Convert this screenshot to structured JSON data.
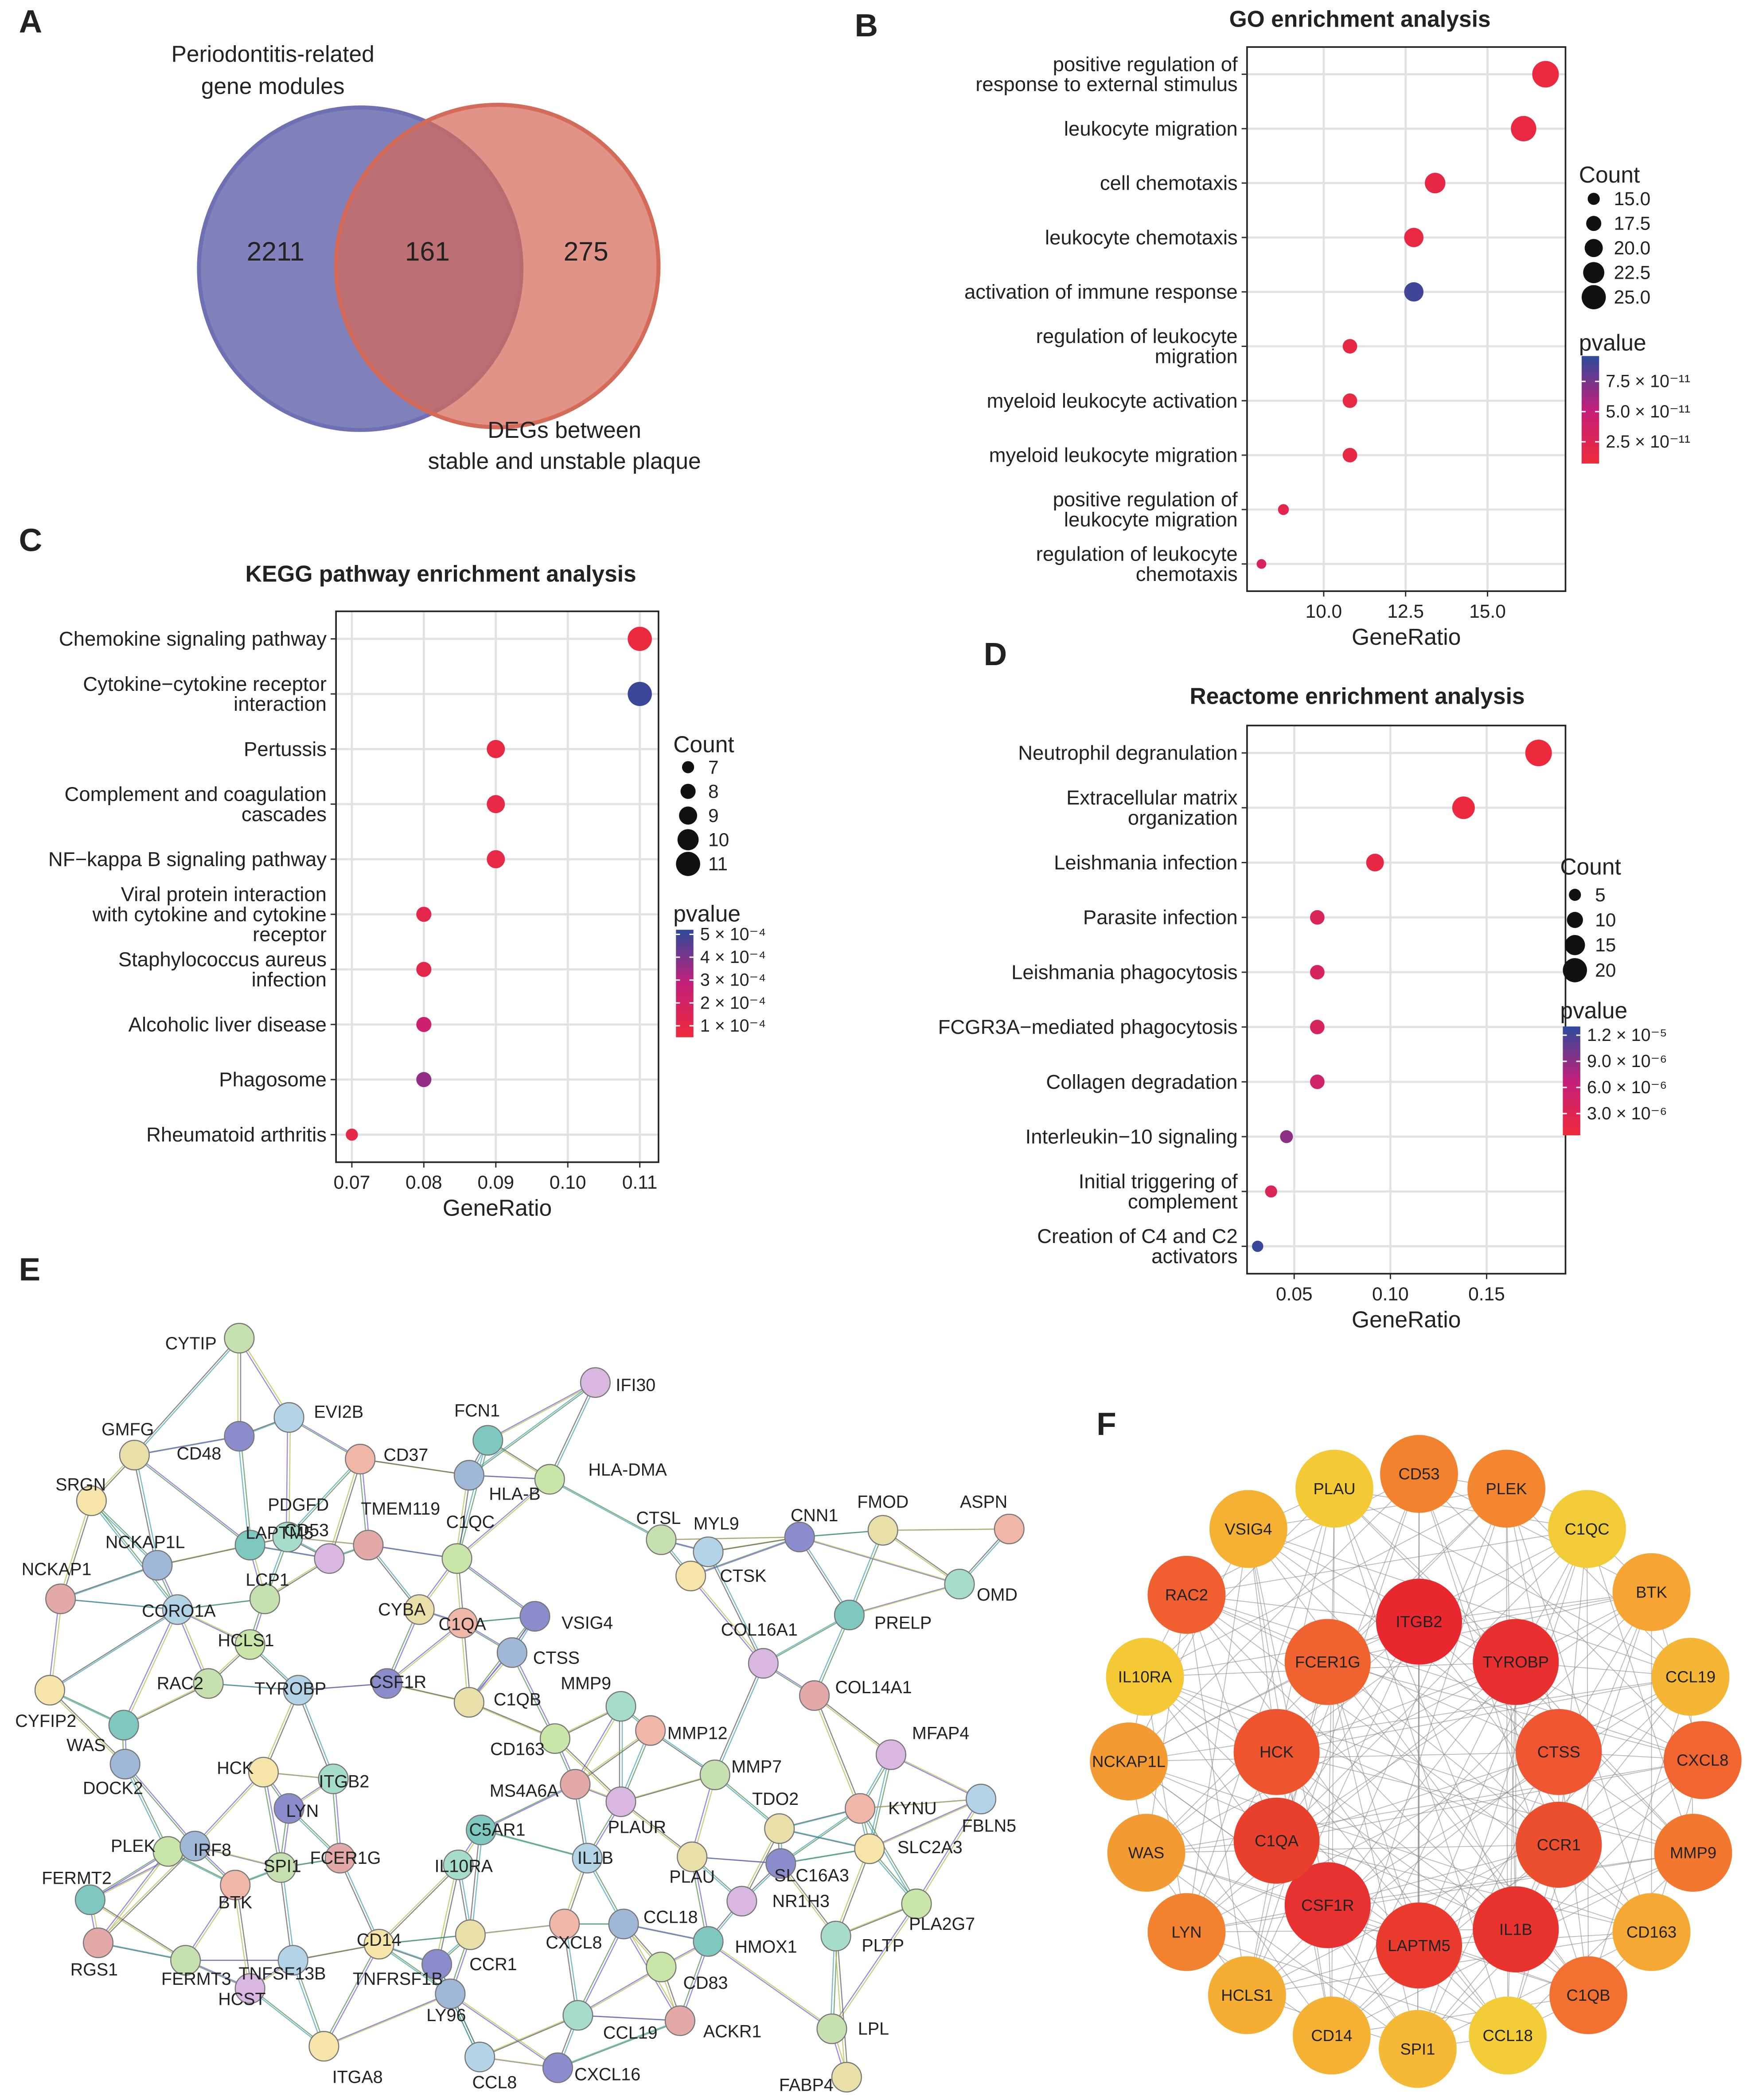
{
  "chart_data": [
    {
      "panel": "A",
      "type": "venn",
      "sets": [
        {
          "name": [
            "Periodontitis-related",
            "gene modules"
          ],
          "color": "#6f70b3",
          "only": 2211
        },
        {
          "name": [
            "DEGs between",
            "stable and unstable plaque"
          ],
          "color": "#d46a58",
          "only": 275
        }
      ],
      "intersection": 161
    },
    {
      "panel": "B",
      "type": "dot",
      "title": "GO enrichment analysis",
      "xlabel": "GeneRatio",
      "categories": [
        [
          "positive regulation of",
          "response to external stimulus"
        ],
        "leukocyte migration",
        "cell chemotaxis",
        "leukocyte chemotaxis",
        "activation of immune response",
        [
          "regulation of leukocyte",
          "migration"
        ],
        "myeloid leukocyte activation",
        "myeloid leukocyte migration",
        [
          "positive regulation of",
          "leukocyte migration"
        ],
        [
          "regulation of leukocyte",
          "chemotaxis"
        ]
      ],
      "values": [
        16.77,
        16.1,
        13.4,
        12.75,
        12.75,
        10.8,
        10.8,
        10.8,
        8.77,
        8.1
      ],
      "count": [
        27,
        26,
        22,
        21,
        21,
        17,
        17,
        17,
        14,
        13
      ],
      "pvalue": [
        1e-11,
        1.2e-11,
        1.5e-11,
        1.3e-11,
        9e-11,
        1.4e-11,
        1.3e-11,
        1.4e-11,
        2e-11,
        3e-11
      ],
      "xlim": [
        7.66,
        17.38
      ],
      "xticks": [
        {
          "value": 10,
          "label": "10.0"
        },
        12.5,
        {
          "value": 15,
          "label": "15.0"
        }
      ],
      "grid": true,
      "size_title": "Count",
      "size_legend": [
        {
          "value": 15,
          "label": "15.0"
        },
        17.5,
        {
          "value": 20,
          "label": "20.0"
        },
        22.5,
        {
          "value": 25,
          "label": "25.0"
        }
      ],
      "color_title": "pvalue",
      "color_lim": [
        7e-12,
        9.6e-11
      ],
      "color_ticks": [
        {
          "value": 2.5e-11,
          "label": "2.5 × 10⁻¹¹"
        },
        {
          "value": 5e-11,
          "label": "5.0 × 10⁻¹¹"
        },
        {
          "value": 7.5e-11,
          "label": "7.5 × 10⁻¹¹"
        }
      ],
      "colormap": [
        "#ee2a3b",
        "#c41f7a",
        "#2d4b9b"
      ]
    },
    {
      "panel": "C",
      "type": "dot",
      "title": "KEGG pathway enrichment analysis",
      "xlabel": "GeneRatio",
      "categories": [
        "Chemokine signaling pathway",
        [
          "Cytokine−cytokine receptor",
          "interaction"
        ],
        "Pertussis",
        [
          "Complement and coagulation",
          "cascades"
        ],
        "NF−kappa B signaling pathway",
        [
          "Viral protein interaction",
          "with cytokine and cytokine",
          "receptor"
        ],
        [
          "Staphylococcus aureus",
          "infection"
        ],
        "Alcoholic liver disease",
        "Phagosome",
        "Rheumatoid arthritis"
      ],
      "values": [
        0.11,
        0.11,
        0.09,
        0.09,
        0.09,
        0.08,
        0.08,
        0.08,
        0.08,
        0.07
      ],
      "count": [
        11,
        11,
        9,
        9,
        9,
        8,
        8,
        8,
        8,
        7
      ],
      "pvalue": [
        6e-05,
        0.0005,
        8e-05,
        9e-05,
        9e-05,
        0.00011,
        0.00011,
        0.00024,
        0.00036,
        0.0001
      ],
      "xlim": [
        0.0678,
        0.1126
      ],
      "xticks": [
        0.07,
        0.08,
        0.09,
        {
          "value": 0.1,
          "label": "0.10"
        },
        0.11
      ],
      "grid": true,
      "size_title": "Count",
      "size_legend": [
        7,
        8,
        9,
        10,
        11
      ],
      "color_title": "pvalue",
      "color_lim": [
        5e-05,
        0.00052
      ],
      "color_ticks": [
        {
          "value": 0.0005,
          "label": "5 × 10⁻⁴"
        },
        {
          "value": 0.0004,
          "label": "4 × 10⁻⁴"
        },
        {
          "value": 0.0003,
          "label": "3 × 10⁻⁴"
        },
        {
          "value": 0.0002,
          "label": "2 × 10⁻⁴"
        },
        {
          "value": 0.0001,
          "label": "1 × 10⁻⁴"
        }
      ],
      "colormap": [
        "#ee2a3b",
        "#c41f7a",
        "#2d4b9b"
      ]
    },
    {
      "panel": "D",
      "type": "dot",
      "title": "Reactome enrichment analysis",
      "xlabel": "GeneRatio",
      "categories": [
        "Neutrophil degranulation",
        [
          "Extracellular matrix",
          "organization"
        ],
        "Leishmania infection",
        "Parasite infection",
        "Leishmania phagocytosis",
        "FCGR3A−mediated phagocytosis",
        "Collagen degradation",
        "Interleukin−10 signaling",
        [
          "Initial triggering of",
          "complement"
        ],
        [
          "Creation of C4 and C2",
          "activators"
        ]
      ],
      "values": [
        0.177,
        0.138,
        0.092,
        0.062,
        0.062,
        0.062,
        0.062,
        0.046,
        0.038,
        0.031
      ],
      "count": [
        23,
        18,
        12,
        8,
        8,
        8,
        8,
        6,
        5,
        4
      ],
      "pvalue": [
        6e-07,
        8e-07,
        1.5e-06,
        3.5e-06,
        3.8e-06,
        3.8e-06,
        5e-06,
        9e-06,
        3.5e-06,
        1.25e-05
      ],
      "xlim": [
        0.0255,
        0.191
      ],
      "xticks": [
        0.05,
        {
          "value": 0.1,
          "label": "0.10"
        },
        0.15
      ],
      "grid": true,
      "size_title": "Count",
      "size_legend": [
        5,
        10,
        15,
        20
      ],
      "color_title": "pvalue",
      "color_lim": [
        5e-07,
        1.3e-05
      ],
      "color_ticks": [
        {
          "value": 1.2e-05,
          "label": "1.2 × 10⁻⁵"
        },
        {
          "value": 9e-06,
          "label": "9.0 × 10⁻⁶"
        },
        {
          "value": 6e-06,
          "label": "6.0 × 10⁻⁶"
        },
        {
          "value": 3e-06,
          "label": "3.0 × 10⁻⁶"
        }
      ],
      "colormap": [
        "#ee2a3b",
        "#c41f7a",
        "#2d4b9b"
      ]
    },
    {
      "panel": "E",
      "type": "network",
      "nodes": [
        "CYTIP",
        "EVI2B",
        "CD48",
        "GMFG",
        "CD37",
        "FCN1",
        "IFI30",
        "HLA-DMA",
        "HLA-B",
        "SRGN",
        "PDGFD",
        "TMEM119",
        "CTSL",
        "MYL9",
        "CNN1",
        "FMOD",
        "ASPN",
        "LAPTM5",
        "CD53",
        "C1QC",
        "NCKAP1L",
        "CTSK",
        "OMD",
        "NCKAP1",
        "LCP1",
        "CORO1A",
        "VSIG4",
        "CYBA",
        "C1QA",
        "PRELP",
        "COL16A1",
        "HCLS1",
        "CTSS",
        "CYFIP2",
        "MMP9",
        "COL14A1",
        "RAC2",
        "TYROBP",
        "CSF1R",
        "C1QB",
        "MMP12",
        "WAS",
        "MFAP4",
        "CD163",
        "DOCK2",
        "HCK",
        "ITGB2",
        "MS4A6A",
        "MMP7",
        "FBLN5",
        "LYN",
        "TDO2",
        "KYNU",
        "C5AR1",
        "PLAUR",
        "PLEK",
        "IRF8",
        "SLC2A3",
        "IL10RA",
        "FCER1G",
        "SPI1",
        "IL1B",
        "SLC16A3",
        "PLAU",
        "BTK",
        "FERMT2",
        "NR1H3",
        "PLA2G7",
        "CCL18",
        "CD14",
        "PLTP",
        "RGS1",
        "FERMT3",
        "TNFSF13B",
        "TNFRSF1B",
        "CCR1",
        "CXCL8",
        "HMOX1",
        "HCST",
        "CD83",
        "LY96",
        "ITGA8",
        "CCL19",
        "ACKR1",
        "LPL",
        "CCL8",
        "CXCL16",
        "FABP4"
      ]
    },
    {
      "panel": "F",
      "type": "circle-network",
      "nodes": [
        {
          "label": "PLAU",
          "color": "#f4c936"
        },
        {
          "label": "CD53",
          "color": "#f3822f"
        },
        {
          "label": "PLEK",
          "color": "#f3862f"
        },
        {
          "label": "C1QC",
          "color": "#f2cc38"
        },
        {
          "label": "BTK",
          "color": "#f6a434"
        },
        {
          "label": "CCL19",
          "color": "#f5b535"
        },
        {
          "label": "CXCL8",
          "color": "#f06530"
        },
        {
          "label": "MMP9",
          "color": "#f3782f"
        },
        {
          "label": "CD163",
          "color": "#f5a934"
        },
        {
          "label": "C1QB",
          "color": "#f27030"
        },
        {
          "label": "CCL18",
          "color": "#f2cd38"
        },
        {
          "label": "SPI1",
          "color": "#f6b936"
        },
        {
          "label": "CD14",
          "color": "#f5b133"
        },
        {
          "label": "HCLS1",
          "color": "#f5ad34"
        },
        {
          "label": "LYN",
          "color": "#f2822f"
        },
        {
          "label": "WAS",
          "color": "#f39b33"
        },
        {
          "label": "NCKAP1L",
          "color": "#f49a32"
        },
        {
          "label": "IL10RA",
          "color": "#f5c836"
        },
        {
          "label": "RAC2",
          "color": "#ef5f2f"
        },
        {
          "label": "VSIG4",
          "color": "#f5b133"
        },
        {
          "label": "ITGB2",
          "color": "#e8282e"
        },
        {
          "label": "TYROBP",
          "color": "#e83030"
        },
        {
          "label": "CTSS",
          "color": "#ee5530"
        },
        {
          "label": "CCR1",
          "color": "#ec4f2e"
        },
        {
          "label": "IL1B",
          "color": "#e8332f"
        },
        {
          "label": "LAPTM5",
          "color": "#eb3a2e"
        },
        {
          "label": "CSF1R",
          "color": "#e83232"
        },
        {
          "label": "C1QA",
          "color": "#e9402e"
        },
        {
          "label": "HCK",
          "color": "#ee552f"
        },
        {
          "label": "FCER1G",
          "color": "#f0622f"
        }
      ]
    }
  ]
}
